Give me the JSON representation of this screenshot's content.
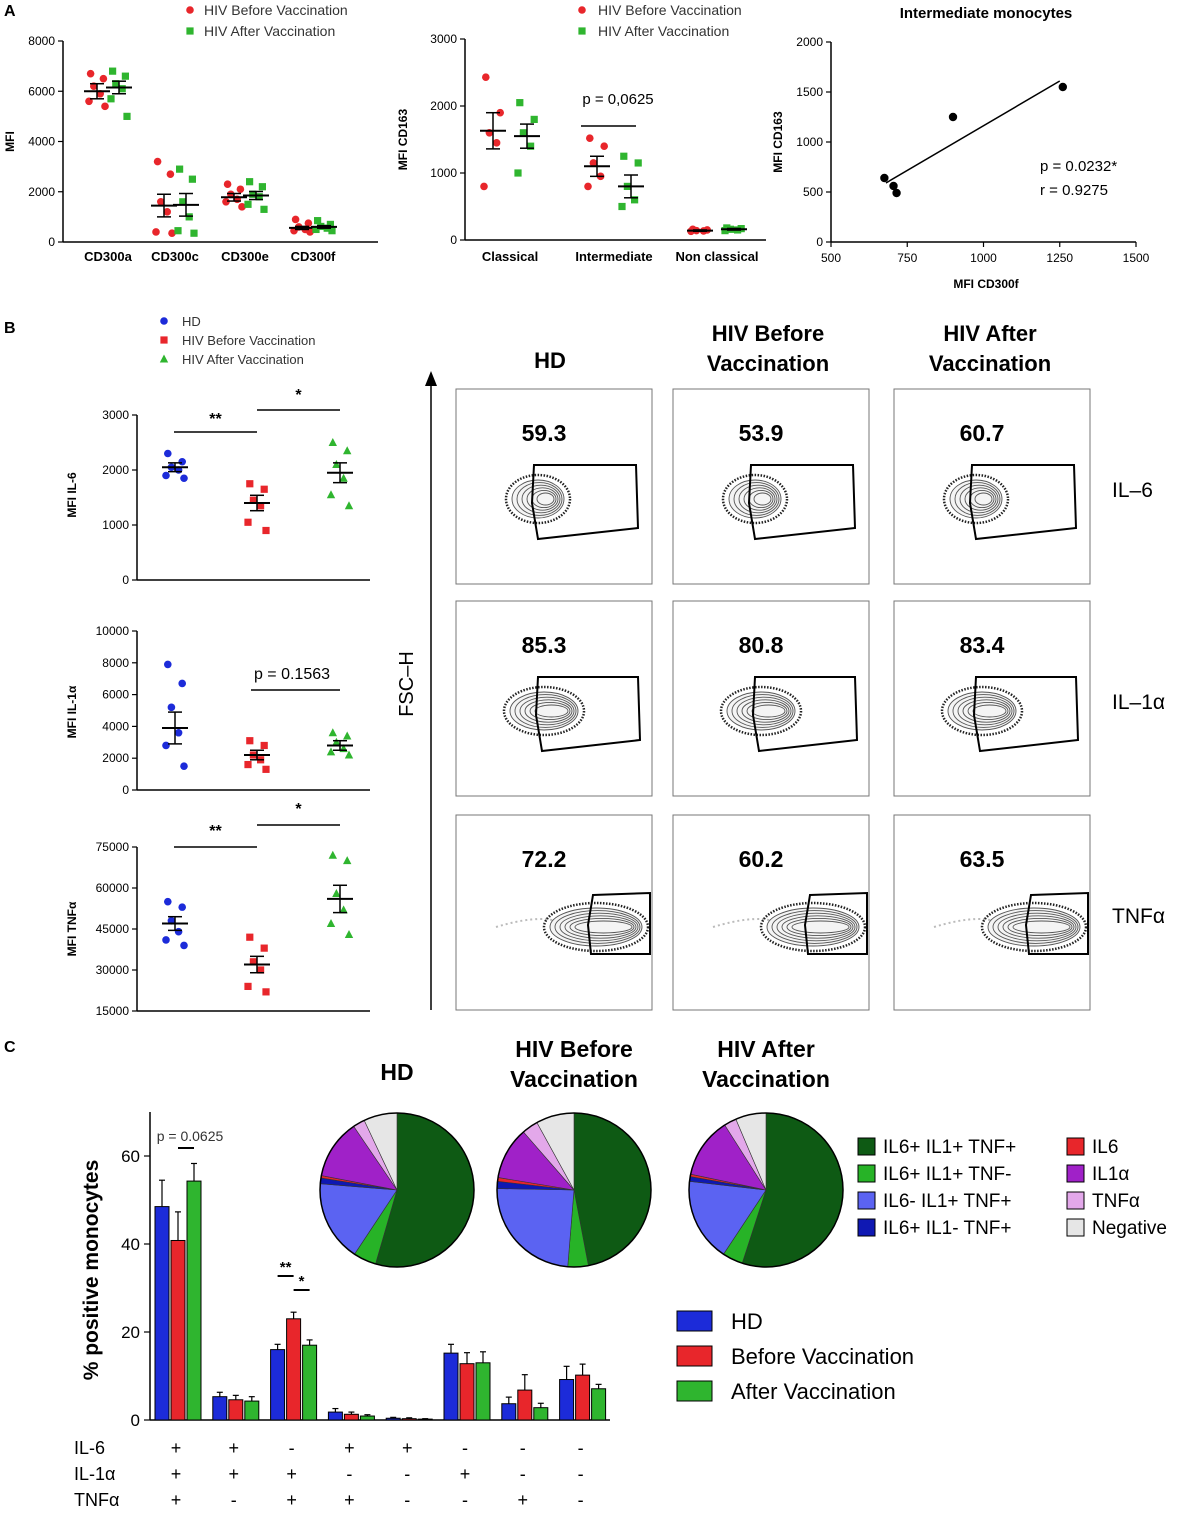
{
  "panel_labels": [
    "A",
    "B",
    "C"
  ],
  "colors": {
    "red": "#e8262b",
    "green": "#2fb52f",
    "blue": "#1c2bd9",
    "pie": [
      "#0e5a14",
      "#27b327",
      "#5b63f2",
      "#0f18b3",
      "#e8262b",
      "#a021c8",
      "#e3a8ea",
      "#e6e6e6"
    ]
  },
  "chart_data": [
    {
      "id": "A1",
      "type": "scatter",
      "ylabel": "MFI",
      "ylim": [
        0,
        8000
      ],
      "yticks": [
        "0",
        "2000",
        "4000",
        "6000",
        "8000"
      ],
      "categories": [
        "CD300a",
        "CD300c",
        "CD300e",
        "CD300f"
      ],
      "legend": [
        "HIV Before Vaccination",
        "HIV After Vaccination"
      ],
      "series": [
        {
          "name": "HIV Before Vaccination",
          "means": [
            6000,
            1450,
            1780,
            560
          ],
          "sems": [
            300,
            450,
            150,
            60
          ],
          "points": [
            [
              6700,
              6500,
              6200,
              5900,
              5600,
              5400
            ],
            [
              3200,
              2700,
              1600,
              1200,
              400,
              350
            ],
            [
              2300,
              2100,
              1900,
              1700,
              1600,
              1400
            ],
            [
              900,
              750,
              600,
              500,
              450,
              400
            ]
          ]
        },
        {
          "name": "HIV After Vaccination",
          "means": [
            6150,
            1480,
            1850,
            600
          ],
          "sems": [
            250,
            450,
            160,
            50
          ],
          "points": [
            [
              6800,
              6600,
              6300,
              6100,
              5700,
              5000
            ],
            [
              2900,
              2500,
              1600,
              1000,
              450,
              350
            ],
            [
              2400,
              2200,
              1900,
              1800,
              1500,
              1300
            ],
            [
              850,
              700,
              620,
              550,
              500,
              450
            ]
          ]
        }
      ]
    },
    {
      "id": "A2",
      "type": "scatter",
      "ylabel": "MFI CD163",
      "ylim": [
        0,
        3000
      ],
      "yticks": [
        "0",
        "1000",
        "2000",
        "3000"
      ],
      "categories": [
        "Classical",
        "Intermediate",
        "Non classical"
      ],
      "legend": [
        "HIV Before Vaccination",
        "HIV After Vaccination"
      ],
      "annotation": "p = 0,0625",
      "series": [
        {
          "name": "HIV Before Vaccination",
          "means": [
            1630,
            1100,
            140
          ],
          "sems": [
            270,
            150,
            10
          ],
          "points": [
            [
              2430,
              1900,
              1600,
              1450,
              800
            ],
            [
              1520,
              1400,
              1150,
              950,
              800
            ],
            [
              160,
              150,
              140,
              135,
              130
            ]
          ]
        },
        {
          "name": "HIV After Vaccination",
          "means": [
            1550,
            800,
            160
          ],
          "sems": [
            180,
            170,
            12
          ],
          "points": [
            [
              2050,
              1800,
              1600,
              1400,
              1000
            ],
            [
              1250,
              1150,
              800,
              600,
              500
            ],
            [
              180,
              170,
              160,
              150,
              140
            ]
          ]
        }
      ]
    },
    {
      "id": "A3",
      "type": "scatter",
      "title": "Intermediate monocytes",
      "xlabel": "MFI CD300f",
      "ylabel": "MFI CD163",
      "xlim": [
        500,
        1500
      ],
      "ylim": [
        0,
        2000
      ],
      "xticks": [
        "500",
        "750",
        "1000",
        "1250",
        "1500"
      ],
      "yticks": [
        "0",
        "500",
        "1000",
        "1500",
        "2000"
      ],
      "x": [
        675,
        705,
        715,
        900,
        1260
      ],
      "y": [
        640,
        560,
        490,
        1250,
        1550
      ],
      "fit": [
        [
          680,
          590
        ],
        [
          1250,
          1610
        ]
      ],
      "stat_p": "p = 0.0232*",
      "stat_r": "r = 0.9275"
    },
    {
      "id": "B1",
      "type": "scatter",
      "ylabel": "MFI IL-6",
      "ylim": [
        0,
        3000
      ],
      "yticks": [
        "0",
        "1000",
        "2000",
        "3000"
      ],
      "legend": [
        "HD",
        "HIV Before Vaccination",
        "HIV After Vaccination"
      ],
      "sig": [
        {
          "label": "**",
          "from": 0,
          "to": 1
        },
        {
          "label": "*",
          "from": 1,
          "to": 2
        }
      ],
      "groups": [
        {
          "name": "HD",
          "mean": 2050,
          "sem": 80,
          "points": [
            2300,
            2150,
            2050,
            2000,
            1900,
            1850
          ]
        },
        {
          "name": "HIV Before Vaccination",
          "mean": 1400,
          "sem": 140,
          "points": [
            1750,
            1650,
            1450,
            1350,
            1050,
            900
          ]
        },
        {
          "name": "HIV After Vaccination",
          "mean": 1950,
          "sem": 180,
          "points": [
            2500,
            2350,
            2100,
            1850,
            1550,
            1350
          ]
        }
      ]
    },
    {
      "id": "B2",
      "type": "scatter",
      "ylabel": "MFI IL-1α",
      "ylim": [
        0,
        10000
      ],
      "yticks": [
        "0",
        "2000",
        "4000",
        "6000",
        "8000",
        "10000"
      ],
      "annotation": "p = 0.1563",
      "groups": [
        {
          "name": "HD",
          "mean": 3900,
          "sem": 1000,
          "points": [
            7900,
            6700,
            5200,
            3600,
            2800,
            1500
          ]
        },
        {
          "name": "HIV Before Vaccination",
          "mean": 2200,
          "sem": 300,
          "points": [
            3100,
            2800,
            2200,
            1900,
            1600,
            1300
          ]
        },
        {
          "name": "HIV After Vaccination",
          "mean": 2800,
          "sem": 300,
          "points": [
            3600,
            3400,
            3000,
            2600,
            2400,
            2200
          ]
        }
      ]
    },
    {
      "id": "B3",
      "type": "scatter",
      "ylabel": "MFI TNFα",
      "ylim": [
        15000,
        75000
      ],
      "yticks": [
        "15000",
        "30000",
        "45000",
        "60000",
        "75000"
      ],
      "sig": [
        {
          "label": "**",
          "from": 0,
          "to": 1
        },
        {
          "label": "*",
          "from": 1,
          "to": 2
        }
      ],
      "groups": [
        {
          "name": "HD",
          "mean": 47000,
          "sem": 2500,
          "points": [
            55000,
            53000,
            48000,
            44000,
            41000,
            39000
          ]
        },
        {
          "name": "HIV Before Vaccination",
          "mean": 32000,
          "sem": 3000,
          "points": [
            42000,
            38000,
            33000,
            30000,
            24000,
            22000
          ]
        },
        {
          "name": "HIV After Vaccination",
          "mean": 56000,
          "sem": 5000,
          "points": [
            72000,
            70000,
            58000,
            52000,
            47000,
            43000
          ]
        }
      ]
    },
    {
      "id": "C-bar",
      "type": "bar",
      "ylabel": "% positive monocytes",
      "ylim": [
        0,
        70
      ],
      "yticks": [
        "0",
        "20",
        "40",
        "60"
      ],
      "row_labels": [
        "IL-6",
        "IL-1α",
        "TNFα"
      ],
      "categories": [
        [
          "+",
          "+",
          "+"
        ],
        [
          "+",
          "+",
          "-"
        ],
        [
          "-",
          "+",
          "+"
        ],
        [
          "+",
          "-",
          "+"
        ],
        [
          "+",
          "-",
          "-"
        ],
        [
          "-",
          "+",
          "-"
        ],
        [
          "-",
          "-",
          "+"
        ],
        [
          "-",
          "-",
          "-"
        ]
      ],
      "legend": [
        "HD",
        "Before Vaccination",
        "After Vaccination"
      ],
      "series": [
        {
          "name": "HD",
          "values": [
            48.5,
            5.3,
            16,
            1.8,
            0.4,
            15.2,
            3.7,
            9.2
          ],
          "errors": [
            6,
            1,
            1.2,
            0.8,
            0.2,
            2,
            1.5,
            3
          ]
        },
        {
          "name": "Before Vaccination",
          "values": [
            40.8,
            4.6,
            23,
            1.3,
            0.3,
            12.8,
            6.8,
            10.2
          ],
          "errors": [
            6.5,
            1,
            1.5,
            0.5,
            0.2,
            2.5,
            3.5,
            2.5
          ]
        },
        {
          "name": "After Vaccination",
          "values": [
            54.3,
            4.3,
            17,
            0.9,
            0.2,
            13,
            2.8,
            7.1
          ],
          "errors": [
            4,
            1,
            1.2,
            0.3,
            0.1,
            2.5,
            1,
            1
          ]
        }
      ],
      "annotations": [
        {
          "label": "p = 0.0625",
          "cat": 0,
          "from": 1,
          "to": 2
        },
        {
          "label": "**",
          "cat": 2,
          "from": 0,
          "to": 1
        },
        {
          "label": "*",
          "cat": 2,
          "from": 1,
          "to": 2
        }
      ]
    },
    {
      "id": "C-pies",
      "type": "pie",
      "legend": [
        "IL6+ IL1+ TNF+",
        "IL6+ IL1+ TNF-",
        "IL6- IL1+ TNF+",
        "IL6+ IL1- TNF+",
        "IL6",
        "IL1α",
        "TNFα",
        "Negative"
      ],
      "pies": [
        {
          "title": [
            "HD"
          ],
          "values": [
            54.5,
            4.8,
            17,
            1.2,
            0.5,
            12.5,
            2.5,
            7
          ]
        },
        {
          "title": [
            "HIV Before",
            "Vaccination"
          ],
          "values": [
            47,
            4.3,
            24,
            1.5,
            0.8,
            11,
            3.4,
            8
          ]
        },
        {
          "title": [
            "HIV After",
            "Vaccination"
          ],
          "values": [
            55,
            4.3,
            17.5,
            1,
            0.5,
            12.7,
            2.6,
            6.4
          ]
        }
      ]
    }
  ],
  "flow": {
    "y_axis_label": "FSC–H",
    "columns": [
      "HD",
      "HIV Before Vaccination",
      "HIV After Vaccination"
    ],
    "column_titles": [
      [
        "HD"
      ],
      [
        "HIV Before",
        "Vaccination"
      ],
      [
        "HIV After",
        "Vaccination"
      ]
    ],
    "rows": [
      "IL–6",
      "IL–1α",
      "TNFα"
    ],
    "values": [
      [
        "59.3",
        "53.9",
        "60.7"
      ],
      [
        "85.3",
        "80.8",
        "83.4"
      ],
      [
        "72.2",
        "60.2",
        "63.5"
      ]
    ]
  }
}
